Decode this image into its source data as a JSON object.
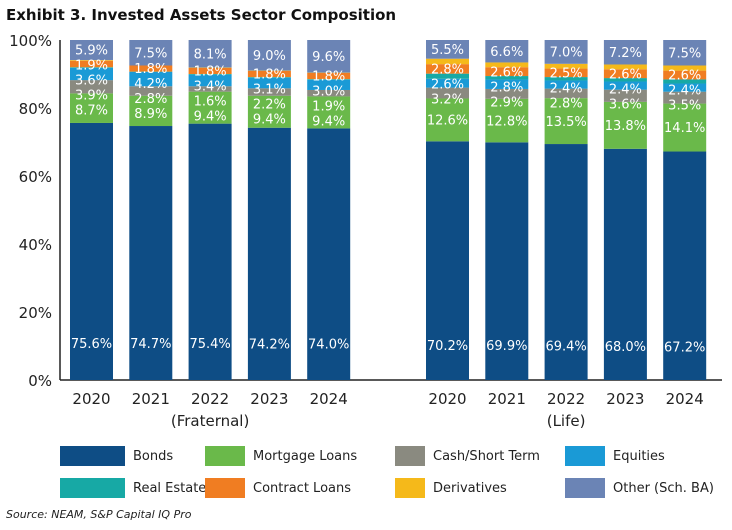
{
  "title": "Exhibit 3. Invested Assets Sector Composition",
  "source": "Source: NEAM, S&P Capital IQ Pro",
  "chart_data": {
    "type": "bar",
    "stacked": true,
    "ylim": [
      0,
      100
    ],
    "yticks": [
      "0%",
      "20%",
      "40%",
      "60%",
      "80%",
      "100%"
    ],
    "groups": [
      {
        "label": "(Fraternal)",
        "categories": [
          "2020",
          "2021",
          "2022",
          "2023",
          "2024"
        ]
      },
      {
        "label": "(Life)",
        "categories": [
          "2020",
          "2021",
          "2022",
          "2023",
          "2024"
        ]
      }
    ],
    "series": [
      {
        "name": "Bonds",
        "color": "#0e4d85",
        "fraternal": [
          75.6,
          74.7,
          75.4,
          74.2,
          74.0
        ],
        "life": [
          70.2,
          69.9,
          69.4,
          68.0,
          67.2
        ],
        "labeled": true
      },
      {
        "name": "Mortgage Loans",
        "color": "#6ab94a",
        "fraternal": [
          8.7,
          8.9,
          9.4,
          9.4,
          9.4
        ],
        "life": [
          12.6,
          12.8,
          13.5,
          13.8,
          14.1
        ],
        "labeled": true
      },
      {
        "name": "Cash/Short Term",
        "color": "#8a8a80",
        "fraternal": [
          3.9,
          2.8,
          1.6,
          2.2,
          1.9
        ],
        "life": [
          3.2,
          2.9,
          2.8,
          3.6,
          3.5
        ],
        "labeled": true
      },
      {
        "name": "Equities",
        "color": "#1a9ad6",
        "fraternal": [
          3.6,
          4.2,
          3.4,
          3.1,
          3.0
        ],
        "life": [
          2.6,
          2.8,
          2.4,
          2.4,
          2.4
        ],
        "labeled": true
      },
      {
        "name": "Real Estate",
        "color": "#17a9a5",
        "fraternal": [
          0.2,
          0.1,
          0.2,
          0.2,
          0.2
        ],
        "life": [
          1.5,
          1.0,
          1.0,
          1.0,
          1.2
        ],
        "labeled": false
      },
      {
        "name": "Contract Loans",
        "color": "#f07d22",
        "fraternal": [
          1.9,
          1.8,
          1.8,
          1.8,
          1.8
        ],
        "life": [
          2.8,
          2.6,
          2.5,
          2.6,
          2.6
        ],
        "labeled": true
      },
      {
        "name": "Derivatives",
        "color": "#f5b91a",
        "fraternal": [
          0.2,
          0.0,
          0.1,
          0.1,
          0.1
        ],
        "life": [
          1.6,
          1.4,
          1.4,
          1.4,
          1.5
        ],
        "labeled": false
      },
      {
        "name": "Other (Sch. BA)",
        "color": "#6b84b5",
        "fraternal": [
          5.9,
          7.5,
          8.1,
          9.0,
          9.6
        ],
        "life": [
          5.5,
          6.6,
          7.0,
          7.2,
          7.5
        ],
        "labeled": true
      }
    ]
  }
}
